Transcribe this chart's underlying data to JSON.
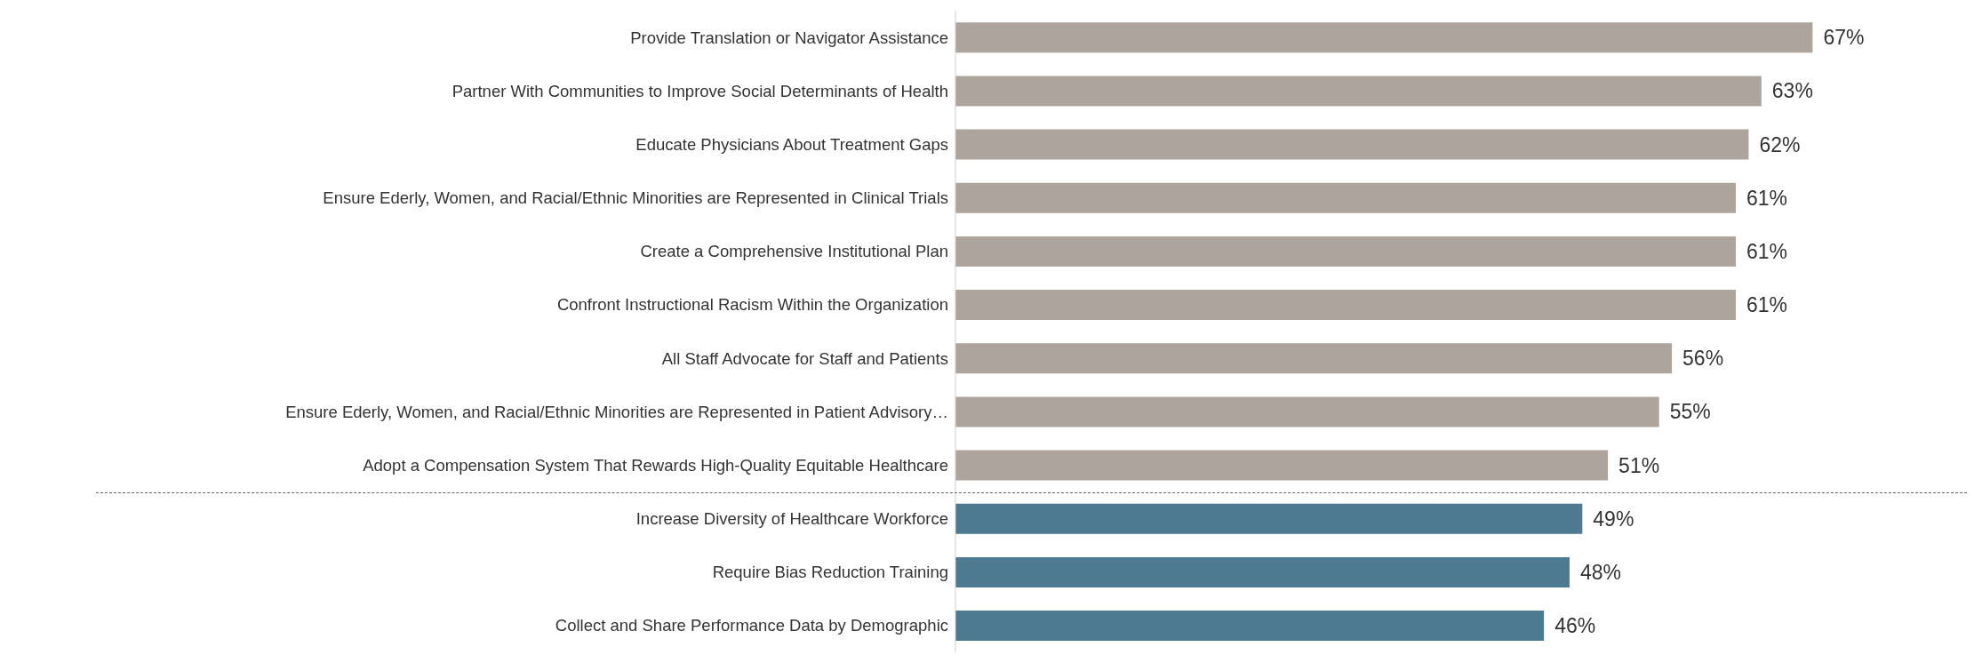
{
  "chart_data": {
    "type": "bar",
    "orientation": "horizontal",
    "categories": [
      "Provide Translation or Navigator Assistance",
      "Partner With Communities to Improve Social Determinants of Health",
      "Educate Physicians About Treatment Gaps",
      "Ensure Ederly, Women, and Racial/Ethnic Minorities are Represented in Clinical Trials",
      "Create a Comprehensive Institutional Plan",
      "Confront Instructional Racism Within the Organization",
      "All Staff Advocate for Staff and Patients",
      "Ensure Ederly, Women, and Racial/Ethnic Minorities are Represented in Patient Advisory…",
      "Adopt a Compensation System That Rewards High-Quality Equitable Healthcare",
      "Increase Diversity of Healthcare Workforce",
      "Require Bias Reduction Training",
      "Collect and Share Performance Data by Demographic"
    ],
    "values": [
      67,
      63,
      62,
      61,
      61,
      61,
      56,
      55,
      51,
      49,
      48,
      46
    ],
    "value_labels": [
      "67%",
      "63%",
      "62%",
      "61%",
      "61%",
      "61%",
      "56%",
      "55%",
      "51%",
      "49%",
      "48%",
      "46%"
    ],
    "colors": [
      "#ada49e",
      "#ada49e",
      "#ada49e",
      "#ada49e",
      "#ada49e",
      "#ada49e",
      "#ada49e",
      "#ada49e",
      "#ada49e",
      "#4d7a91",
      "#4d7a91",
      "#4d7a91"
    ],
    "grid": false,
    "legend": false
  }
}
